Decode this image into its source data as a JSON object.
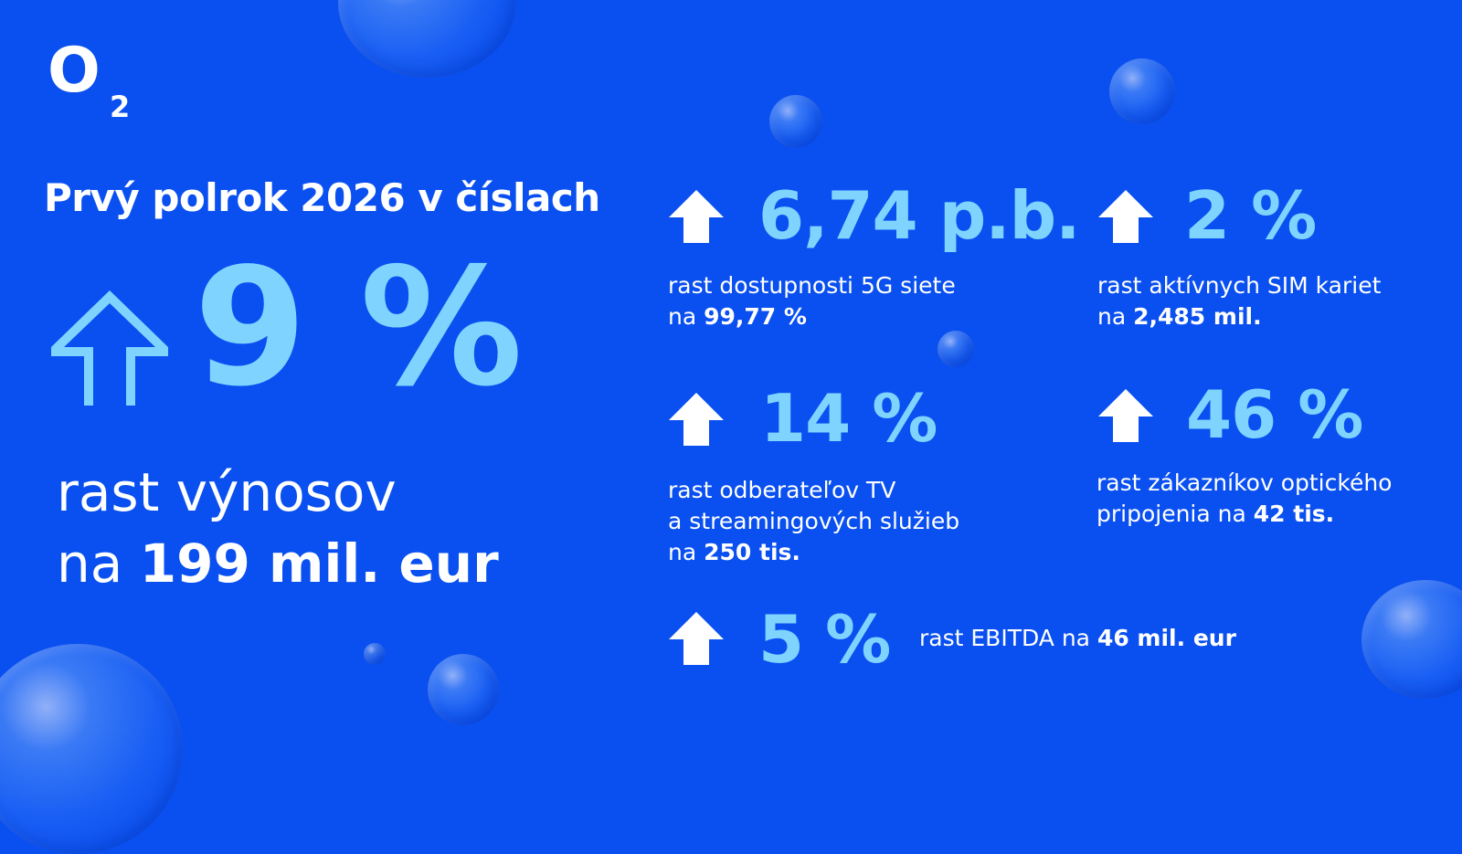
{
  "logo": {
    "main": "O",
    "sub": "2",
    "icon": "o2-logo"
  },
  "title": "Prvý polrok 2026 v číslach",
  "headline": {
    "icon": "arrow-up-outline-icon",
    "value": "9 %",
    "desc_line1": "rast výnosov",
    "desc_prefix": "na ",
    "desc_bold": "199 mil. eur"
  },
  "stats": [
    {
      "icon": "arrow-up-icon",
      "value": "6,74 p.b.",
      "line1": "rast dostupnosti 5G siete",
      "prefix": "na ",
      "bold": "99,77 %"
    },
    {
      "icon": "arrow-up-icon",
      "value": "2 %",
      "line1": "rast aktívnych SIM kariet",
      "prefix": "na ",
      "bold": "2,485 mil."
    },
    {
      "icon": "arrow-up-icon",
      "value": "14 %",
      "line1": "rast odberateľov TV",
      "line2": "a streamingových služieb",
      "prefix": "na ",
      "bold": "250 tis."
    },
    {
      "icon": "arrow-up-icon",
      "value": "46 %",
      "line1": "rast zákazníkov optického",
      "prefix": "pripojenia na ",
      "bold": "42 tis."
    },
    {
      "icon": "arrow-up-icon",
      "value": "5 %",
      "prefix": "rast EBITDA na ",
      "bold": "46 mil. eur"
    }
  ],
  "colors": {
    "background": "#0a50f0",
    "accent": "#7fd4ff",
    "text": "#ffffff"
  }
}
